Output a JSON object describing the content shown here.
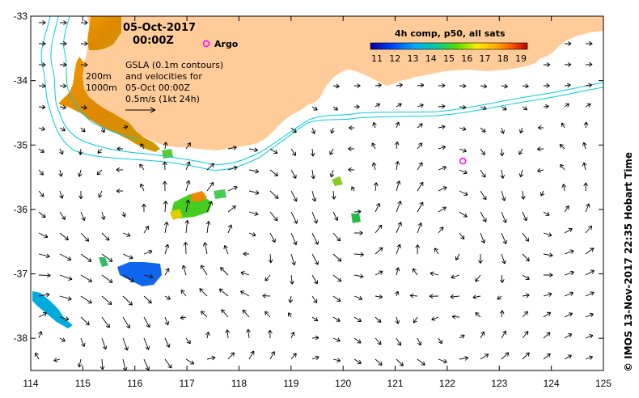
{
  "map": {
    "date_line1": "05-Oct-2017",
    "date_line2": "00:00Z",
    "argo_label": "Argo",
    "depth_200": "200m",
    "depth_1000": "1000m",
    "legend_lines": [
      "GSLA (0.1m contours)",
      "and velocities for",
      "05-Oct 00:00Z",
      "0.5m/s (1kt 24h)"
    ],
    "colorbar_title": "4h comp, p50, all sats",
    "colorbar_ticks": [
      "11",
      "12",
      "13",
      "14",
      "15",
      "16",
      "17",
      "18",
      "19"
    ],
    "colorbar_range": [
      11,
      19
    ],
    "credit": "© IMOS 13-Nov-2017 22:35 Hobart Time",
    "lon_ticks": [
      "114",
      "115",
      "116",
      "117",
      "118",
      "119",
      "120",
      "121",
      "122",
      "123",
      "124",
      "125"
    ],
    "lat_ticks": [
      "-33",
      "-34",
      "-35",
      "-36",
      "-37",
      "-38"
    ],
    "lon_range": [
      114,
      125
    ],
    "lat_range": [
      -38.5,
      -33
    ],
    "argo_position": {
      "lon": 122.3,
      "lat": -35.25
    },
    "colors": {
      "land": "#ffcc99",
      "contour": "#00ccdd",
      "argo": "#ff00ff",
      "arrow": "#000000"
    }
  }
}
